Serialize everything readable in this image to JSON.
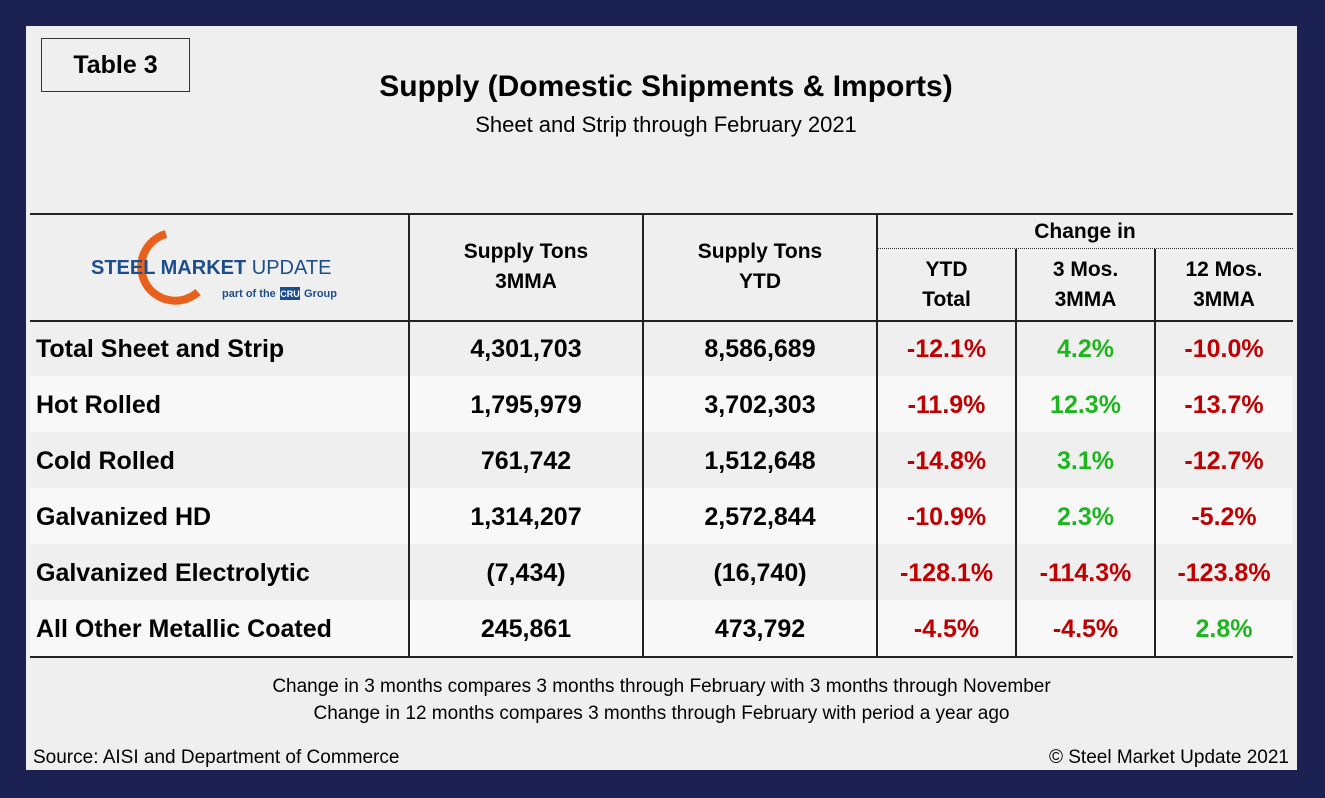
{
  "table_label": "Table 3",
  "header": {
    "title": "Supply (Domestic Shipments & Imports)",
    "subtitle": "Sheet and Strip through February 2021"
  },
  "logo": {
    "name_bold": "STEEL MARKET",
    "name_light": "UPDATE",
    "tagline_pre": "part of the",
    "badge": "CRU",
    "tagline_post": "Group"
  },
  "table": {
    "columns": [
      {
        "line1": "Supply Tons",
        "line2": "3MMA"
      },
      {
        "line1": "Supply Tons",
        "line2": "YTD"
      }
    ],
    "group_header": "Change in",
    "change_columns": [
      {
        "line1": "YTD",
        "line2": "Total"
      },
      {
        "line1": "3 Mos.",
        "line2": "3MMA"
      },
      {
        "line1": "12 Mos.",
        "line2": "3MMA"
      }
    ],
    "positive_color": "#1fb51f",
    "negative_color": "#c00000",
    "rows": [
      {
        "label": "Total Sheet and Strip",
        "tons_3mma": "4,301,703",
        "tons_ytd": "8,586,689",
        "changes": [
          "-12.1%",
          "4.2%",
          "-10.0%"
        ]
      },
      {
        "label": "Hot Rolled",
        "tons_3mma": "1,795,979",
        "tons_ytd": "3,702,303",
        "changes": [
          "-11.9%",
          "12.3%",
          "-13.7%"
        ]
      },
      {
        "label": "Cold Rolled",
        "tons_3mma": "761,742",
        "tons_ytd": "1,512,648",
        "changes": [
          "-14.8%",
          "3.1%",
          "-12.7%"
        ]
      },
      {
        "label": "Galvanized HD",
        "tons_3mma": "1,314,207",
        "tons_ytd": "2,572,844",
        "changes": [
          "-10.9%",
          "2.3%",
          "-5.2%"
        ]
      },
      {
        "label": "Galvanized Electrolytic",
        "tons_3mma": "(7,434)",
        "tons_ytd": "(16,740)",
        "changes": [
          "-128.1%",
          "-114.3%",
          "-123.8%"
        ]
      },
      {
        "label": "All Other Metallic Coated",
        "tons_3mma": "245,861",
        "tons_ytd": "473,792",
        "changes": [
          "-4.5%",
          "-4.5%",
          "2.8%"
        ]
      }
    ]
  },
  "notes": [
    "Change in 3 months compares 3 months through February with 3 months through November",
    "Change in 12 months compares 3 months through February with period a year ago"
  ],
  "source": "Source: AISI and Department of Commerce",
  "copyright": "© Steel Market Update 2021"
}
